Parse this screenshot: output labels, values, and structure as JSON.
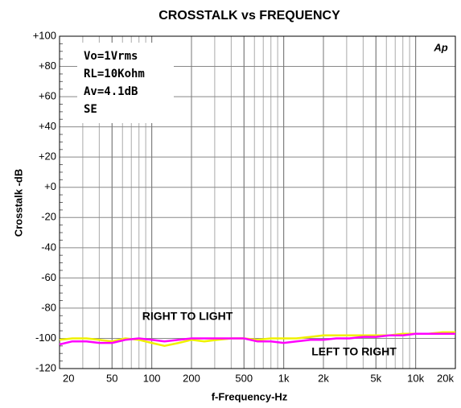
{
  "chart_data": {
    "type": "line",
    "title": "CROSSTALK vs FREQUENCY",
    "xlabel": "f-Frequency-Hz",
    "ylabel": "Crosstalk -dB",
    "xscale": "log",
    "grid": true,
    "xlim": [
      20,
      20000
    ],
    "ylim": [
      -120,
      100
    ],
    "xticks": [
      20,
      50,
      100,
      200,
      500,
      {
        "value": 1000,
        "label": "1k"
      },
      {
        "value": 2000,
        "label": "2k"
      },
      {
        "value": 5000,
        "label": "5k"
      },
      {
        "value": 10000,
        "label": "10k"
      },
      {
        "value": 20000,
        "label": "20k"
      }
    ],
    "yticks": [
      -120,
      -100,
      -80,
      -60,
      -40,
      -20,
      {
        "value": 0,
        "label": "+0"
      },
      {
        "value": 20,
        "label": "+20"
      },
      {
        "value": 40,
        "label": "+40"
      },
      {
        "value": 60,
        "label": "+60"
      },
      {
        "value": 80,
        "label": "+80"
      },
      {
        "value": 100,
        "label": "+100"
      }
    ],
    "x": [
      20,
      25,
      32,
      40,
      50,
      63,
      80,
      100,
      125,
      160,
      200,
      250,
      315,
      400,
      500,
      630,
      800,
      1000,
      1250,
      1600,
      2000,
      2500,
      3150,
      4000,
      5000,
      6300,
      8000,
      10000,
      12500,
      16000,
      20000
    ],
    "series": [
      {
        "color": "#f0f000",
        "values": [
          -101,
          -100,
          -100,
          -101,
          -102,
          -100,
          -101,
          -103,
          -105,
          -103,
          -101,
          -102,
          -101,
          -100,
          -100,
          -101,
          -100,
          -100,
          -100,
          -99,
          -98,
          -98,
          -98,
          -98,
          -98,
          -98,
          -97,
          -97,
          -97,
          -96,
          -96
        ]
      },
      {
        "color": "#ff00ff",
        "values": [
          -104,
          -102,
          -102,
          -103,
          -103,
          -101,
          -100,
          -101,
          -102,
          -101,
          -100,
          -100,
          -100,
          -100,
          -100,
          -102,
          -102,
          -103,
          -102,
          -101,
          -101,
          -100,
          -100,
          -99,
          -99,
          -98,
          -98,
          -97,
          -97,
          -97,
          -97
        ]
      }
    ],
    "notes": [
      "Vo=1Vrms",
      "RL=10Kohm",
      "Av=4.1dB",
      "SE"
    ],
    "annotations": [
      "RIGHT TO LIGHT",
      "LEFT TO RIGHT"
    ],
    "logo": "Ap"
  }
}
